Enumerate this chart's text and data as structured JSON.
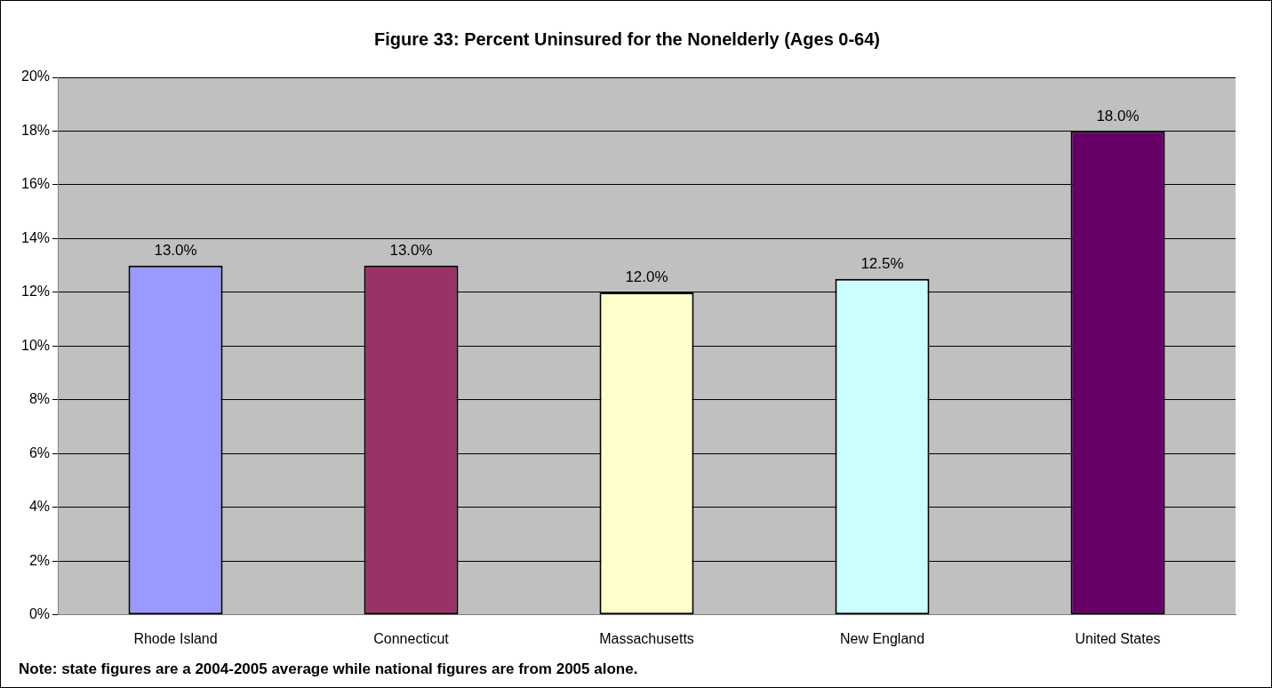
{
  "chart_data": {
    "type": "bar",
    "title": "Figure 33: Percent Uninsured for the Nonelderly (Ages 0-64)",
    "categories": [
      "Rhode Island",
      "Connecticut",
      "Massachusetts",
      "New England",
      "United States"
    ],
    "values": [
      13.0,
      13.0,
      12.0,
      12.5,
      18.0
    ],
    "colors": [
      "#9999ff",
      "#993366",
      "#ffffcc",
      "#ccffff",
      "#660066"
    ],
    "value_labels": [
      "13.0%",
      "13.0%",
      "12.0%",
      "12.5%",
      "18.0%"
    ],
    "ylim": [
      0,
      20
    ],
    "yticks": [
      {
        "value": 0,
        "label": "0%"
      },
      {
        "value": 2,
        "label": "2%"
      },
      {
        "value": 4,
        "label": "4%"
      },
      {
        "value": 6,
        "label": "6%"
      },
      {
        "value": 8,
        "label": "8%"
      },
      {
        "value": 10,
        "label": "10%"
      },
      {
        "value": 12,
        "label": "12%"
      },
      {
        "value": 14,
        "label": "14%"
      },
      {
        "value": 16,
        "label": "16%"
      },
      {
        "value": 18,
        "label": "18%"
      },
      {
        "value": 20,
        "label": "20%"
      }
    ],
    "grid": "y",
    "annotations": [
      "Note: state figures are a 2004-2005 average while national figures are from 2005 alone."
    ]
  }
}
